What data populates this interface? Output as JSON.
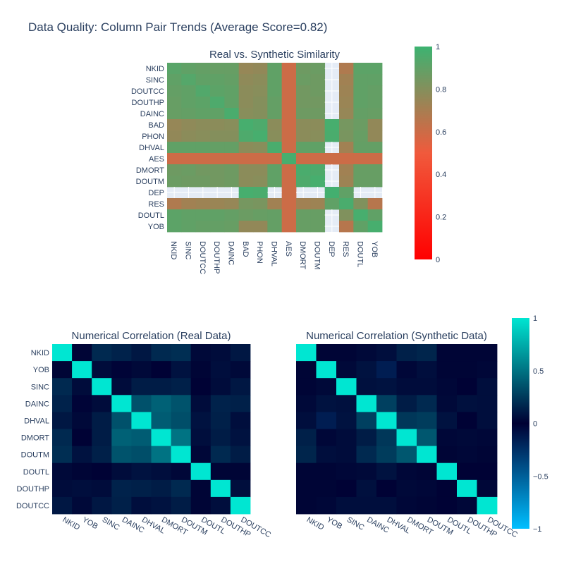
{
  "title": "Data Quality: Column Pair Trends (Average Score=0.82)",
  "chart_data": [
    {
      "type": "heatmap",
      "title": "Real vs. Synthetic Similarity",
      "x_labels": [
        "NKID",
        "SINC",
        "DOUTCC",
        "DOUTHP",
        "DAINC",
        "BAD",
        "PHON",
        "DHVAL",
        "AES",
        "DMORT",
        "DOUTM",
        "DEP",
        "RES",
        "DOUTL",
        "YOB"
      ],
      "y_labels": [
        "NKID",
        "SINC",
        "DOUTCC",
        "DOUTHP",
        "DAINC",
        "BAD",
        "PHON",
        "DHVAL",
        "AES",
        "DMORT",
        "DOUTM",
        "DEP",
        "RES",
        "DOUTL",
        "YOB"
      ],
      "zmin": 0,
      "zmax": 1,
      "colorscale": [
        "#ff0000",
        "#f05a3c",
        "#3cb371"
      ],
      "colorbar_ticks": [
        "0",
        "0.2",
        "0.4",
        "0.6",
        "0.8",
        "1"
      ],
      "missing_color": "#e5ecf6",
      "z": [
        [
          0.92,
          0.9,
          0.89,
          0.88,
          0.88,
          0.75,
          0.76,
          0.9,
          0.6,
          0.86,
          0.87,
          null,
          0.68,
          0.91,
          0.91
        ],
        [
          0.9,
          0.93,
          0.9,
          0.9,
          0.89,
          0.77,
          0.78,
          0.9,
          0.6,
          0.87,
          0.86,
          null,
          0.72,
          0.9,
          0.9
        ],
        [
          0.89,
          0.9,
          0.94,
          0.91,
          0.9,
          0.78,
          0.79,
          0.9,
          0.6,
          0.85,
          0.86,
          null,
          0.73,
          0.9,
          0.89
        ],
        [
          0.88,
          0.9,
          0.91,
          0.95,
          0.9,
          0.78,
          0.8,
          0.89,
          0.6,
          0.85,
          0.85,
          null,
          0.74,
          0.9,
          0.89
        ],
        [
          0.88,
          0.89,
          0.9,
          0.9,
          0.96,
          0.79,
          0.8,
          0.89,
          0.6,
          0.86,
          0.86,
          null,
          0.75,
          0.89,
          0.88
        ],
        [
          0.75,
          0.77,
          0.78,
          0.78,
          0.79,
          0.97,
          0.95,
          0.78,
          0.6,
          0.78,
          0.78,
          0.97,
          0.84,
          0.87,
          0.76
        ],
        [
          0.76,
          0.78,
          0.79,
          0.8,
          0.8,
          0.95,
          0.97,
          0.79,
          0.6,
          0.78,
          0.79,
          0.96,
          0.83,
          0.88,
          0.76
        ],
        [
          0.9,
          0.9,
          0.9,
          0.89,
          0.89,
          0.78,
          0.79,
          0.96,
          0.6,
          0.9,
          0.9,
          null,
          0.72,
          0.89,
          0.89
        ],
        [
          0.6,
          0.6,
          0.6,
          0.6,
          0.6,
          0.6,
          0.6,
          0.6,
          0.97,
          0.6,
          0.6,
          0.6,
          0.6,
          0.6,
          0.6
        ],
        [
          0.86,
          0.87,
          0.85,
          0.85,
          0.86,
          0.78,
          0.78,
          0.9,
          0.6,
          0.96,
          0.95,
          null,
          0.72,
          0.88,
          0.88
        ],
        [
          0.87,
          0.86,
          0.86,
          0.85,
          0.86,
          0.78,
          0.79,
          0.9,
          0.6,
          0.95,
          0.97,
          null,
          0.73,
          0.88,
          0.88
        ],
        [
          null,
          null,
          null,
          null,
          null,
          0.97,
          0.96,
          null,
          0.6,
          null,
          null,
          0.98,
          0.9,
          null,
          null
        ],
        [
          0.68,
          0.72,
          0.73,
          0.74,
          0.75,
          0.84,
          0.83,
          0.72,
          0.6,
          0.72,
          0.73,
          0.9,
          0.96,
          0.81,
          0.66
        ],
        [
          0.91,
          0.9,
          0.9,
          0.9,
          0.89,
          0.87,
          0.88,
          0.89,
          0.6,
          0.88,
          0.88,
          null,
          0.81,
          0.97,
          0.9
        ],
        [
          0.91,
          0.9,
          0.89,
          0.89,
          0.88,
          0.76,
          0.76,
          0.89,
          0.6,
          0.88,
          0.88,
          null,
          0.66,
          0.9,
          0.97
        ]
      ]
    },
    {
      "type": "heatmap",
      "title": "Numerical Correlation (Real Data)",
      "x_labels": [
        "NKID",
        "YOB",
        "SINC",
        "DAINC",
        "DHVAL",
        "DMORT",
        "DOUTM",
        "DOUTL",
        "DOUTHP",
        "DOUTCC"
      ],
      "y_labels": [
        "NKID",
        "YOB",
        "SINC",
        "DAINC",
        "DHVAL",
        "DMORT",
        "DOUTM",
        "DOUTL",
        "DOUTHP",
        "DOUTCC"
      ],
      "zmin": -1,
      "zmax": 1,
      "colorscale": [
        "#00bfff",
        "#000033",
        "#00e6d2"
      ],
      "z": [
        [
          1,
          0.02,
          0.18,
          0.15,
          0.1,
          0.18,
          0.2,
          0.04,
          0.05,
          0.1
        ],
        [
          0.02,
          1,
          0.05,
          -0.02,
          0.04,
          0.01,
          0.08,
          0.02,
          0.06,
          0.04
        ],
        [
          0.18,
          0.05,
          1,
          0.05,
          0.12,
          0.12,
          0.14,
          0.01,
          0.05,
          0.1
        ],
        [
          0.15,
          -0.02,
          0.05,
          1,
          0.35,
          0.42,
          0.36,
          0.05,
          0.15,
          0.14
        ],
        [
          0.1,
          0.04,
          0.12,
          0.35,
          1,
          0.4,
          0.34,
          0.08,
          0.14,
          0.06
        ],
        [
          0.18,
          0.01,
          0.12,
          0.42,
          0.4,
          1,
          0.5,
          0.06,
          0.12,
          0.08
        ],
        [
          0.2,
          0.08,
          0.14,
          0.36,
          0.34,
          0.5,
          1,
          0.03,
          0.18,
          0.12
        ],
        [
          0.04,
          0.02,
          0.01,
          0.05,
          0.08,
          0.06,
          0.03,
          1,
          0.02,
          0.02
        ],
        [
          0.05,
          0.06,
          0.05,
          0.15,
          0.14,
          0.12,
          0.18,
          0.02,
          1,
          0.06
        ],
        [
          0.1,
          0.04,
          0.1,
          0.14,
          0.06,
          0.08,
          0.12,
          0.02,
          0.06,
          1
        ]
      ]
    },
    {
      "type": "heatmap",
      "title": "Numerical Correlation (Synthetic Data)",
      "x_labels": [
        "NKID",
        "YOB",
        "SINC",
        "DAINC",
        "DHVAL",
        "DMORT",
        "DOUTM",
        "DOUTL",
        "DOUTHP",
        "DOUTCC"
      ],
      "y_labels": [
        "NKID",
        "YOB",
        "SINC",
        "DAINC",
        "DHVAL",
        "DMORT",
        "DOUTM",
        "DOUTL",
        "DOUTHP",
        "DOUTCC"
      ],
      "zmin": -1,
      "zmax": 1,
      "colorscale": [
        "#00bfff",
        "#000033",
        "#00e6d2"
      ],
      "colorbar_ticks": [
        "1",
        "0.5",
        "0",
        "−0.5",
        "−1"
      ],
      "z": [
        [
          1,
          0.02,
          0.02,
          0.04,
          0.06,
          0.14,
          0.16,
          0.02,
          0.02,
          0.02
        ],
        [
          0.02,
          1,
          0.04,
          0.08,
          -0.15,
          0.03,
          0.06,
          0.02,
          0.02,
          0.03
        ],
        [
          0.02,
          0.04,
          1,
          0.07,
          0.08,
          0.05,
          0.05,
          0.03,
          -0.01,
          0.06
        ],
        [
          0.04,
          0.08,
          0.07,
          1,
          0.28,
          0.12,
          0.18,
          0.04,
          0.07,
          0.06
        ],
        [
          0.06,
          -0.15,
          0.08,
          0.28,
          1,
          0.24,
          0.26,
          0.08,
          0.01,
          0.06
        ],
        [
          0.14,
          0.03,
          0.05,
          0.12,
          0.24,
          1,
          0.38,
          0.03,
          0.04,
          0.03
        ],
        [
          0.16,
          0.06,
          0.05,
          0.18,
          0.26,
          0.38,
          1,
          0.02,
          0.03,
          0.02
        ],
        [
          0.02,
          0.02,
          0.03,
          0.04,
          0.08,
          0.03,
          0.02,
          1,
          0.01,
          0.01
        ],
        [
          0.02,
          0.02,
          -0.01,
          0.07,
          0.01,
          0.04,
          0.03,
          0.01,
          1,
          0.03
        ],
        [
          0.02,
          0.03,
          0.06,
          0.06,
          0.06,
          0.03,
          0.02,
          0.01,
          0.03,
          1
        ]
      ]
    }
  ]
}
